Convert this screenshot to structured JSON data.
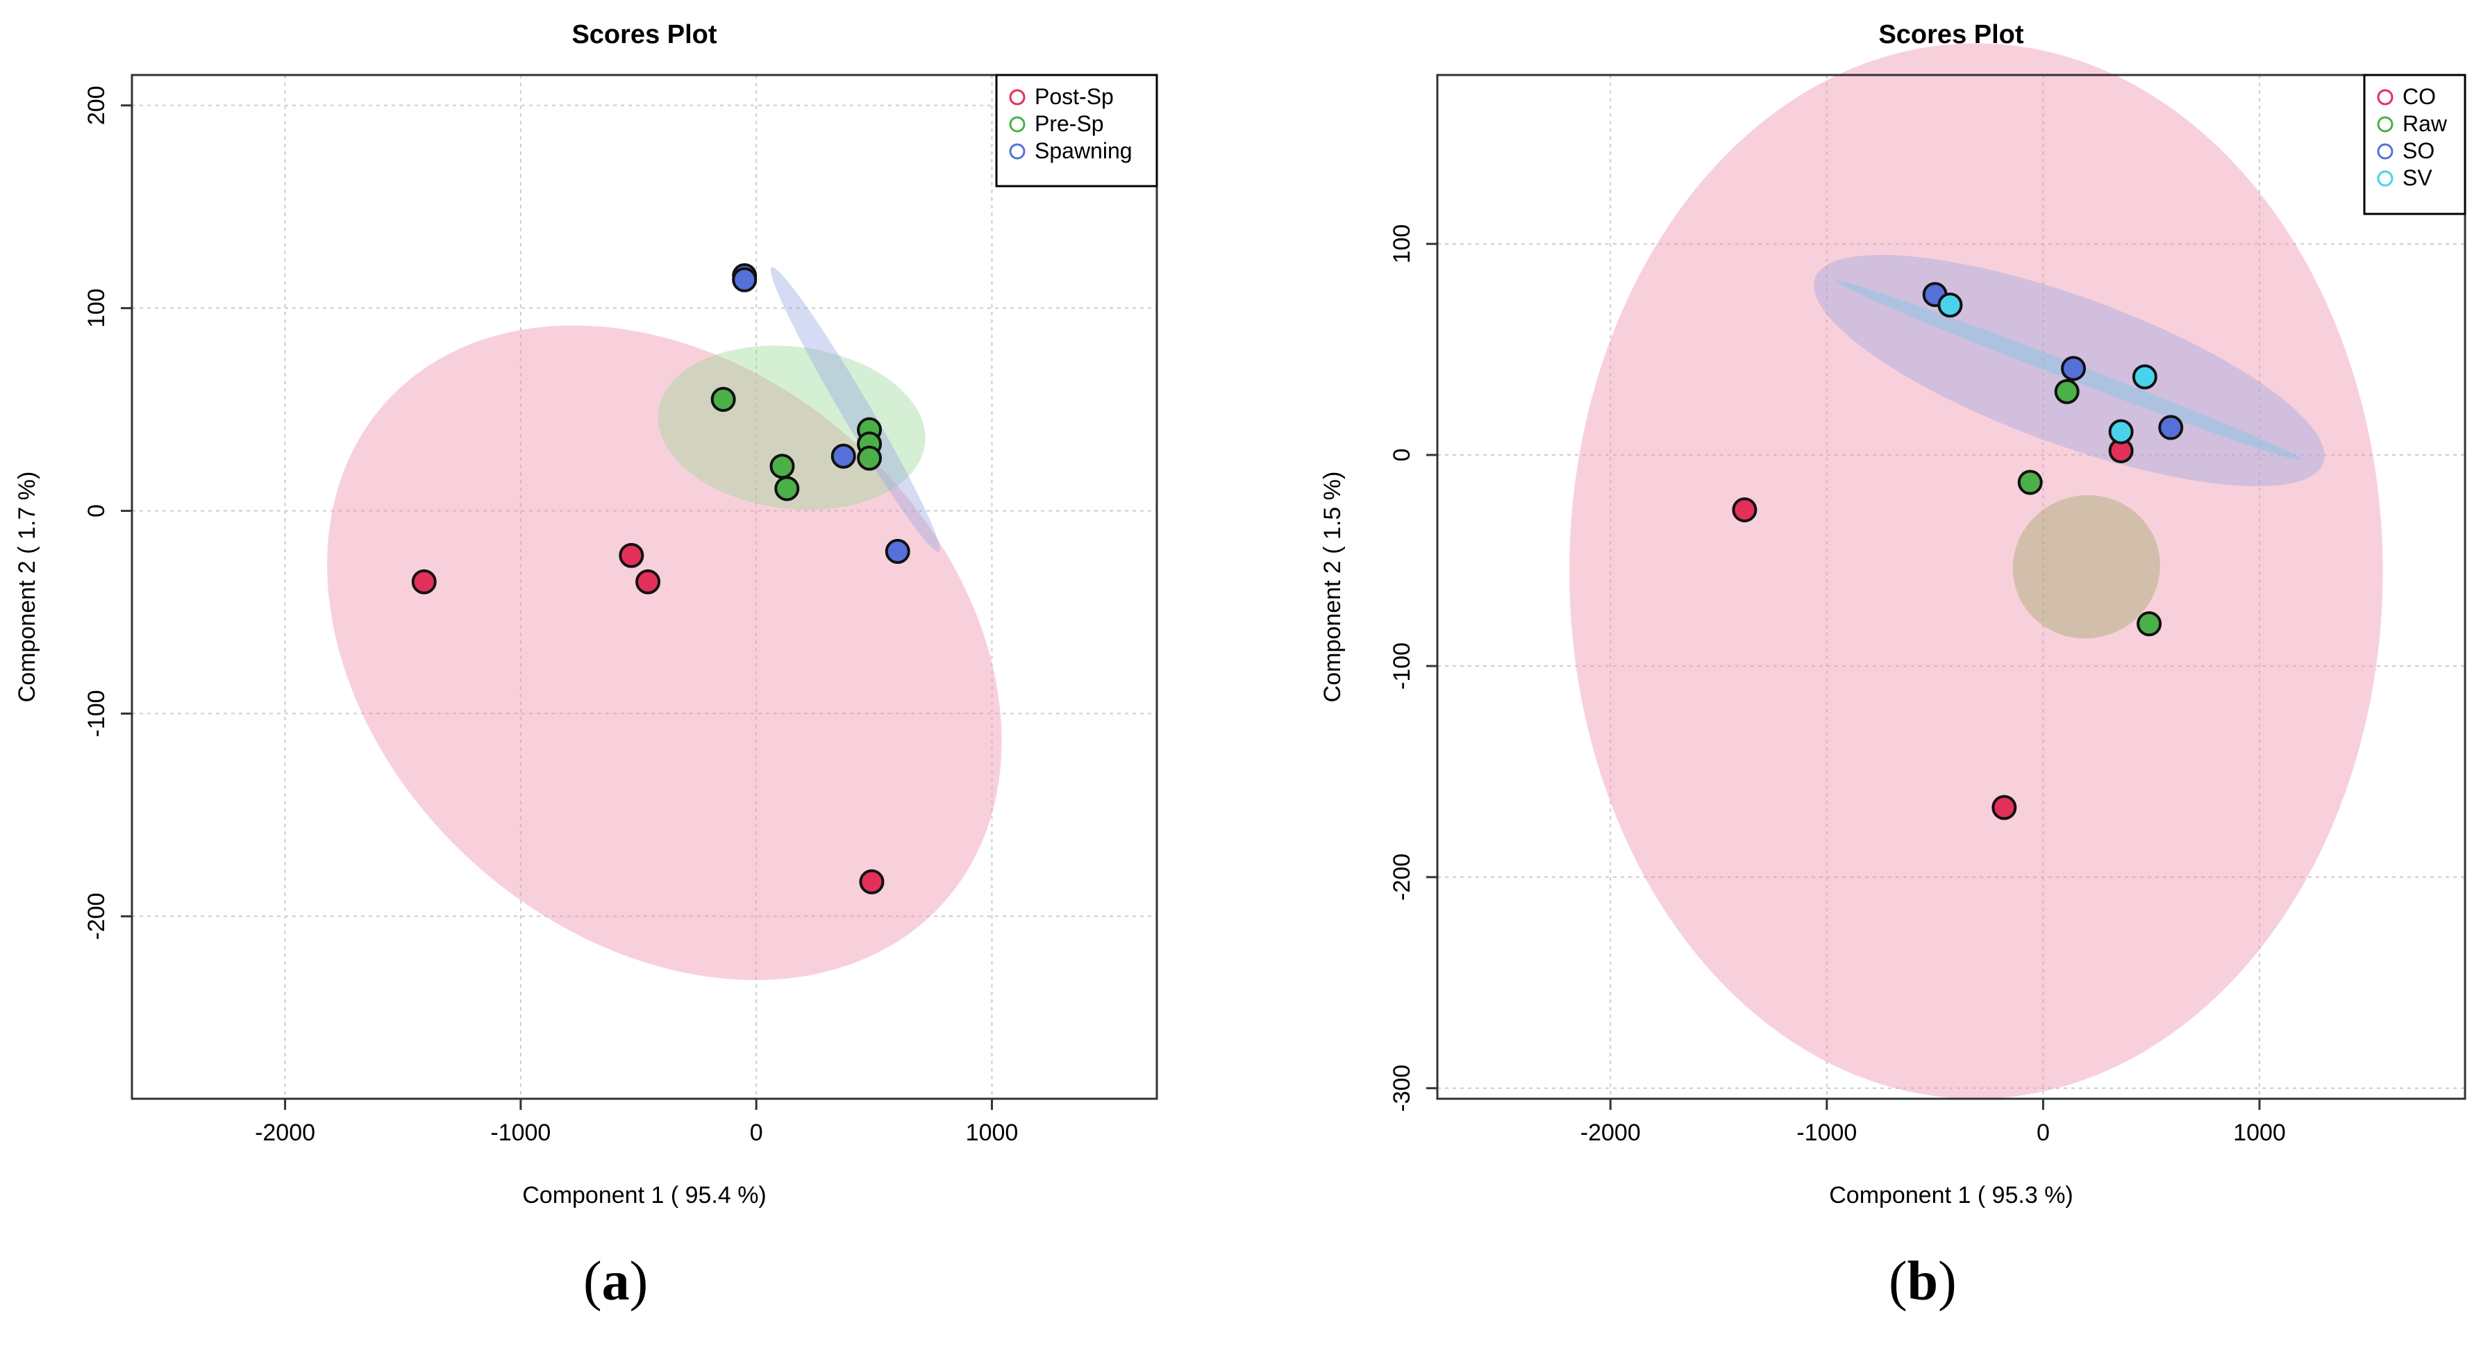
{
  "chart_data": [
    {
      "type": "scatter",
      "title": "Scores Plot",
      "xlabel": "Component 1 ( 95.4 %)",
      "ylabel": "Component 2 ( 1.7 %)",
      "xlim": [
        -2650,
        1700
      ],
      "ylim": [
        -290,
        215
      ],
      "xticks": [
        -2000,
        -1000,
        0,
        1000
      ],
      "yticks": [
        -200,
        -100,
        0,
        100,
        200
      ],
      "grid": true,
      "legend_position": "top-right",
      "series": [
        {
          "name": "Post-Sp",
          "color": "#e3305b",
          "fill": "rgba(240,150,175,0.45)",
          "points": [
            [
              -1410,
              -35
            ],
            [
              -530,
              -22
            ],
            [
              -460,
              -35
            ],
            [
              490,
              -183
            ]
          ]
        },
        {
          "name": "Pre-Sp",
          "color": "#4cb048",
          "fill": "rgba(150,215,150,0.40)",
          "points": [
            [
              -140,
              55
            ],
            [
              110,
              22
            ],
            [
              130,
              11
            ],
            [
              480,
              40
            ],
            [
              480,
              33
            ],
            [
              480,
              26
            ]
          ]
        },
        {
          "name": "Spawning",
          "color": "#5571d9",
          "fill": "rgba(150,165,225,0.40)",
          "points": [
            [
              -50,
              116
            ],
            [
              -50,
              114
            ],
            [
              370,
              27
            ],
            [
              600,
              -20
            ]
          ]
        }
      ]
    },
    {
      "type": "scatter",
      "title": "Scores Plot",
      "xlabel": "Component 1 ( 95.3 %)",
      "ylabel": "Component 2 ( 1.5 %)",
      "xlim": [
        -2800,
        1950
      ],
      "ylim": [
        -305,
        180
      ],
      "xticks": [
        -2000,
        -1000,
        0,
        1000
      ],
      "yticks": [
        -300,
        -200,
        -100,
        0,
        100
      ],
      "grid": true,
      "legend_position": "top-right",
      "series": [
        {
          "name": "CO",
          "color": "#e3305b",
          "fill": "rgba(240,150,175,0.45)",
          "points": [
            [
              -1380,
              -26
            ],
            [
              -180,
              -167
            ],
            [
              360,
              2
            ]
          ]
        },
        {
          "name": "Raw",
          "color": "#4cb048",
          "fill": "rgba(150,165,100,0.40)",
          "points": [
            [
              -60,
              -13
            ],
            [
              110,
              30
            ],
            [
              490,
              -80
            ]
          ]
        },
        {
          "name": "SO",
          "color": "#5571d9",
          "fill": "rgba(150,165,225,0.40)",
          "points": [
            [
              -500,
              76
            ],
            [
              140,
              41
            ],
            [
              590,
              13
            ]
          ]
        },
        {
          "name": "SV",
          "color": "#49d2ec",
          "fill": "rgba(120,200,230,0.40)",
          "points": [
            [
              -430,
              71
            ],
            [
              470,
              37
            ],
            [
              360,
              11
            ]
          ]
        }
      ]
    }
  ],
  "captions": {
    "a": "a",
    "b": "b"
  }
}
